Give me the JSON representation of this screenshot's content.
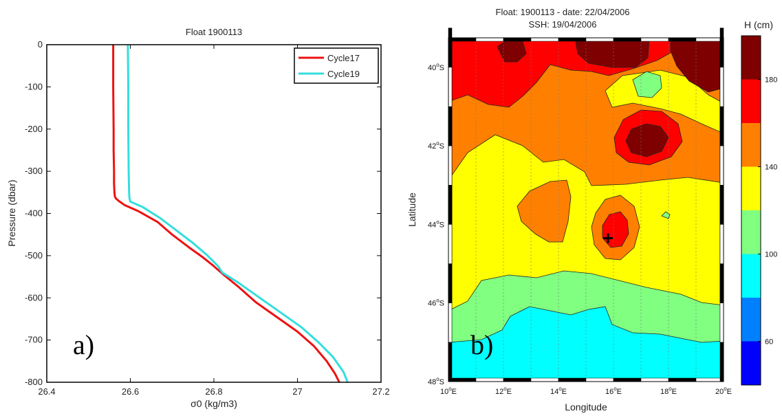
{
  "chart_data": [
    {
      "type": "line",
      "title": "Float 1900113",
      "xlabel": "σ0 (kg/m3)",
      "ylabel": "Pressure (dbar)",
      "xlim": [
        26.4,
        27.2
      ],
      "ylim": [
        -800,
        0
      ],
      "xticks": [
        "26.4",
        "26.6",
        "26.8",
        "27",
        "27.2"
      ],
      "yticks": [
        "0",
        "-100",
        "-200",
        "-300",
        "-400",
        "-500",
        "-600",
        "-700",
        "-800"
      ],
      "legend_position": "top-right",
      "panel_label": "a)",
      "series": [
        {
          "name": "Cycle17",
          "color": "#ee1111",
          "x": [
            26.559,
            26.559,
            26.56,
            26.56,
            26.561,
            26.561,
            26.562,
            26.563,
            26.566,
            26.572,
            26.586,
            26.62,
            26.665,
            26.7,
            26.74,
            26.775,
            26.8,
            26.823,
            26.86,
            26.9,
            26.95,
            27.0,
            27.04,
            27.07,
            27.09,
            27.1
          ],
          "y": [
            0,
            -100,
            -200,
            -250,
            -300,
            -330,
            -350,
            -360,
            -365,
            -370,
            -380,
            -395,
            -420,
            -450,
            -480,
            -505,
            -525,
            -545,
            -575,
            -610,
            -645,
            -680,
            -715,
            -750,
            -780,
            -800
          ]
        },
        {
          "name": "Cycle19",
          "color": "#33dede",
          "x": [
            26.594,
            26.595,
            26.595,
            26.596,
            26.597,
            26.598,
            26.6,
            26.63,
            26.67,
            26.71,
            26.75,
            26.785,
            26.81,
            26.82,
            26.86,
            26.91,
            26.96,
            27.01,
            27.05,
            27.085,
            27.11,
            27.12
          ],
          "y": [
            0,
            -100,
            -200,
            -300,
            -350,
            -365,
            -372,
            -385,
            -410,
            -440,
            -470,
            -500,
            -525,
            -540,
            -565,
            -600,
            -635,
            -670,
            -705,
            -740,
            -775,
            -800
          ]
        }
      ]
    },
    {
      "type": "heatmap",
      "title": "Float: 1900113    -   date:  22/04/2006",
      "subtitle": "SSH:  19/04/2006",
      "xlabel": "Longitude",
      "ylabel": "Latitude",
      "xlim": [
        10,
        20
      ],
      "ylim": [
        -48,
        -39.25
      ],
      "xticks": [
        "10",
        "12",
        "14",
        "16",
        "18",
        "20"
      ],
      "xtick_suffix": "E",
      "yticks": [
        "40",
        "42",
        "44",
        "46",
        "48"
      ],
      "ytick_suffix": "S",
      "degree_mark": "o",
      "float_position": {
        "lon": 15.8,
        "lat": -44.35,
        "marker": "+"
      },
      "panel_label": "b)",
      "colorbar": {
        "title": "H (cm)",
        "ticks": [
          "180",
          "140",
          "100",
          "60"
        ],
        "levels": [
          {
            "range": [
              180,
              200
            ],
            "color": "#7f0000"
          },
          {
            "range": [
              160,
              180
            ],
            "color": "#ff0000"
          },
          {
            "range": [
              140,
              160
            ],
            "color": "#ff8000"
          },
          {
            "range": [
              120,
              140
            ],
            "color": "#ffff00"
          },
          {
            "range": [
              100,
              120
            ],
            "color": "#80ff80"
          },
          {
            "range": [
              80,
              100
            ],
            "color": "#00ffff"
          },
          {
            "range": [
              60,
              80
            ],
            "color": "#0080ff"
          },
          {
            "range": [
              40,
              60
            ],
            "color": "#0000ff"
          }
        ]
      }
    }
  ]
}
